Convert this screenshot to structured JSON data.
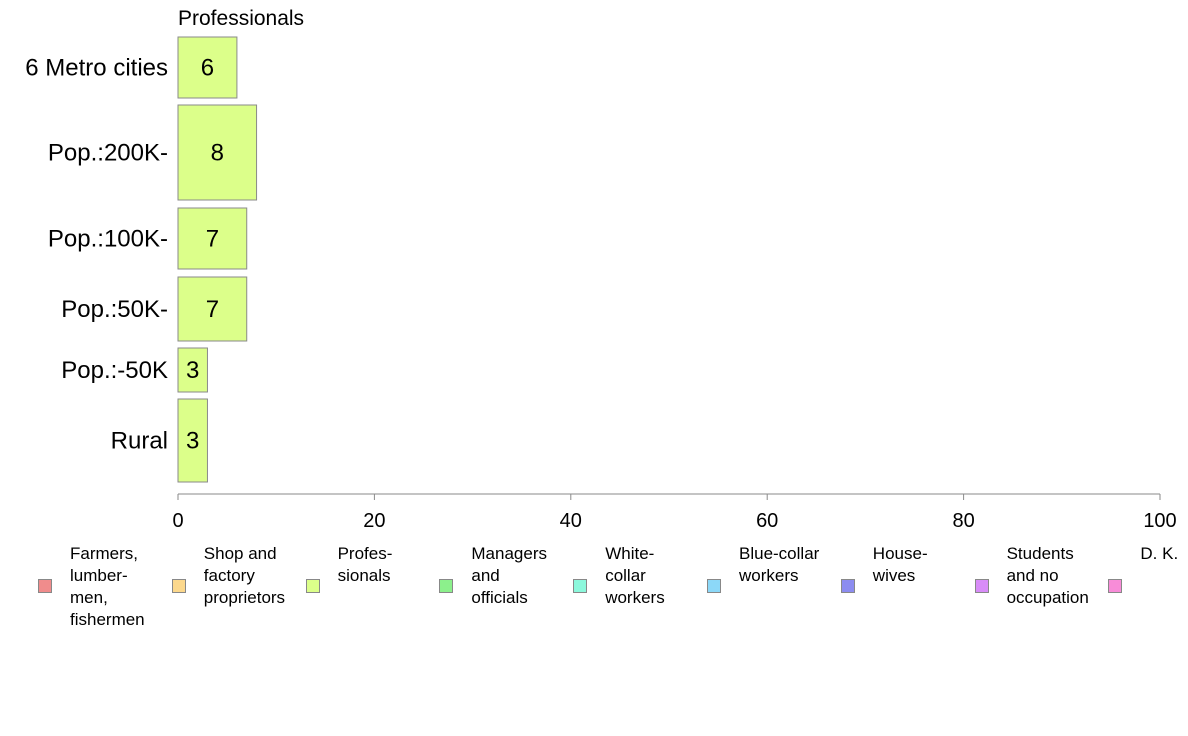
{
  "chart_data": {
    "type": "bar",
    "orientation": "horizontal",
    "title": "Professionals",
    "categories": [
      "6 Metro cities",
      "Pop.:200K-",
      "Pop.:100K-",
      "Pop.:50K-",
      "Pop.:-50K",
      "Rural"
    ],
    "values": [
      6,
      8,
      7,
      7,
      3,
      3
    ],
    "value_labels": [
      "6",
      "8",
      "7",
      "7",
      "3",
      "3"
    ],
    "xlim": [
      0,
      100
    ],
    "x_ticks": [
      0,
      20,
      40,
      60,
      80,
      100
    ],
    "x_tick_labels": [
      "0",
      "20",
      "40",
      "60",
      "80",
      "100"
    ],
    "bar_color": "#dcff8a",
    "grid": false,
    "legend_position": "bottom",
    "legend": [
      {
        "label": "Farmers,\nlumber-\nmen,\nfishermen",
        "color": "#f08c8c"
      },
      {
        "label": "Shop and\nfactory\nproprietors",
        "color": "#fcd88c"
      },
      {
        "label": "Profes-\nsionals",
        "color": "#dcff8a"
      },
      {
        "label": "Managers\nand\nofficials",
        "color": "#8cf08c"
      },
      {
        "label": "White-\ncollar\nworkers",
        "color": "#8cf8dc"
      },
      {
        "label": "Blue-collar\nworkers",
        "color": "#8cd8f8"
      },
      {
        "label": "House-\nwives",
        "color": "#8c8cf0"
      },
      {
        "label": "Students\nand no\noccupation",
        "color": "#d88cf8"
      },
      {
        "label": "D. K.",
        "color": "#f88cd8"
      }
    ]
  }
}
